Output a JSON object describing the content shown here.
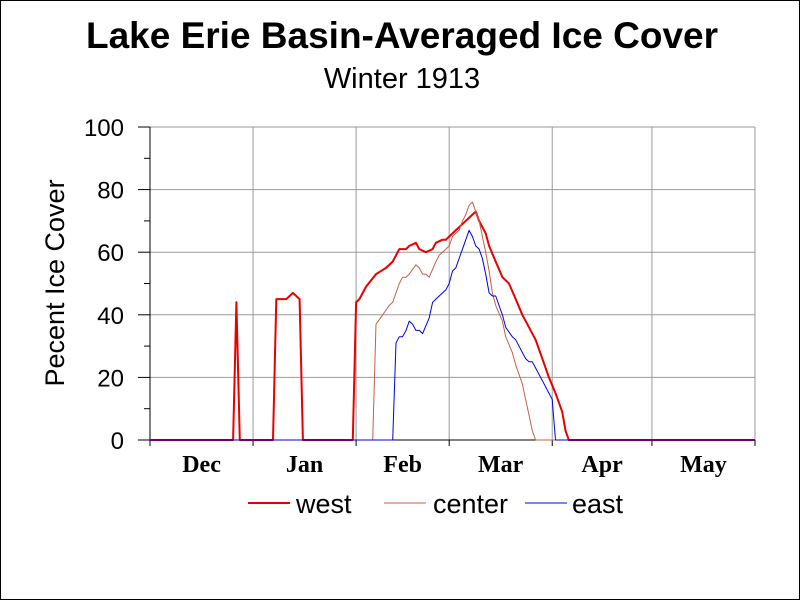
{
  "chart_data": {
    "type": "line",
    "title": "Lake Erie Basin-Averaged Ice Cover",
    "subtitle": "Winter 1913",
    "ylabel": "Pecent Ice Cover",
    "xlabel": "",
    "ylim": [
      0,
      100
    ],
    "yticks": [
      "0",
      "20",
      "40",
      "60",
      "80",
      "100"
    ],
    "x_unit": "days since Dec 1",
    "xlim": [
      0,
      182
    ],
    "months": [
      {
        "label": "Dec",
        "start": 0,
        "end": 31
      },
      {
        "label": "Jan",
        "start": 31,
        "end": 62
      },
      {
        "label": "Feb",
        "start": 62,
        "end": 90
      },
      {
        "label": "Mar",
        "start": 90,
        "end": 121
      },
      {
        "label": "Apr",
        "start": 121,
        "end": 151
      },
      {
        "label": "May",
        "start": 151,
        "end": 182
      }
    ],
    "grid": true,
    "legend_position": "bottom",
    "series": [
      {
        "name": "west",
        "color": "#e80000",
        "width": 2,
        "points": [
          [
            0,
            0
          ],
          [
            25,
            0
          ],
          [
            26,
            44
          ],
          [
            27,
            0
          ],
          [
            28,
            0
          ],
          [
            37,
            0
          ],
          [
            38,
            45
          ],
          [
            41,
            45
          ],
          [
            43,
            47
          ],
          [
            45,
            45
          ],
          [
            46,
            0
          ],
          [
            47,
            0
          ],
          [
            61,
            0
          ],
          [
            62,
            44
          ],
          [
            63,
            45
          ],
          [
            65,
            49
          ],
          [
            68,
            53
          ],
          [
            71,
            55
          ],
          [
            73,
            57
          ],
          [
            75,
            61
          ],
          [
            77,
            61
          ],
          [
            78,
            62
          ],
          [
            80,
            63
          ],
          [
            81,
            61
          ],
          [
            83,
            60
          ],
          [
            85,
            61
          ],
          [
            86,
            63
          ],
          [
            88,
            64
          ],
          [
            89,
            64
          ],
          [
            91,
            66
          ],
          [
            93,
            68
          ],
          [
            95,
            70
          ],
          [
            97,
            72
          ],
          [
            98,
            73
          ],
          [
            99,
            70
          ],
          [
            101,
            66
          ],
          [
            102,
            62
          ],
          [
            104,
            57
          ],
          [
            106,
            52
          ],
          [
            108,
            50
          ],
          [
            110,
            45
          ],
          [
            112,
            40
          ],
          [
            114,
            36
          ],
          [
            116,
            32
          ],
          [
            118,
            26
          ],
          [
            120,
            20
          ],
          [
            122,
            15
          ],
          [
            124,
            9
          ],
          [
            125,
            3
          ],
          [
            126,
            0
          ],
          [
            182,
            0
          ]
        ]
      },
      {
        "name": "center",
        "color": "#c06050",
        "width": 1,
        "points": [
          [
            0,
            0
          ],
          [
            67,
            0
          ],
          [
            68,
            37
          ],
          [
            70,
            40
          ],
          [
            72,
            43
          ],
          [
            73,
            44
          ],
          [
            75,
            50
          ],
          [
            76,
            52
          ],
          [
            77,
            52
          ],
          [
            78,
            53
          ],
          [
            80,
            56
          ],
          [
            81,
            55
          ],
          [
            82,
            53
          ],
          [
            83,
            53
          ],
          [
            84,
            52
          ],
          [
            86,
            57
          ],
          [
            87,
            59
          ],
          [
            88,
            60
          ],
          [
            89,
            61
          ],
          [
            90,
            62
          ],
          [
            91,
            65
          ],
          [
            93,
            67
          ],
          [
            94,
            70
          ],
          [
            95,
            72
          ],
          [
            96,
            75
          ],
          [
            97,
            76
          ],
          [
            98,
            73
          ],
          [
            99,
            70
          ],
          [
            100,
            65
          ],
          [
            101,
            60
          ],
          [
            102,
            54
          ],
          [
            103,
            47
          ],
          [
            104,
            43
          ],
          [
            106,
            38
          ],
          [
            107,
            33
          ],
          [
            109,
            28
          ],
          [
            110,
            24
          ],
          [
            112,
            18
          ],
          [
            113,
            13
          ],
          [
            114,
            8
          ],
          [
            115,
            3
          ],
          [
            116,
            0
          ],
          [
            182,
            0
          ]
        ]
      },
      {
        "name": "east",
        "color": "#0000e0",
        "width": 1,
        "points": [
          [
            0,
            0
          ],
          [
            73,
            0
          ],
          [
            74,
            31
          ],
          [
            75,
            33
          ],
          [
            76,
            33
          ],
          [
            77,
            35
          ],
          [
            78,
            38
          ],
          [
            79,
            37
          ],
          [
            80,
            35
          ],
          [
            81,
            35
          ],
          [
            82,
            34
          ],
          [
            84,
            39
          ],
          [
            85,
            44
          ],
          [
            86,
            45
          ],
          [
            88,
            47
          ],
          [
            89,
            48
          ],
          [
            90,
            50
          ],
          [
            91,
            54
          ],
          [
            92,
            55
          ],
          [
            93,
            58
          ],
          [
            94,
            61
          ],
          [
            95,
            64
          ],
          [
            96,
            67
          ],
          [
            97,
            65
          ],
          [
            98,
            62
          ],
          [
            99,
            61
          ],
          [
            100,
            58
          ],
          [
            101,
            53
          ],
          [
            102,
            47
          ],
          [
            103,
            46
          ],
          [
            104,
            46
          ],
          [
            106,
            40
          ],
          [
            107,
            36
          ],
          [
            109,
            33
          ],
          [
            110,
            32
          ],
          [
            112,
            28
          ],
          [
            113,
            26
          ],
          [
            114,
            25
          ],
          [
            115,
            25
          ],
          [
            116,
            23
          ],
          [
            118,
            19
          ],
          [
            120,
            15
          ],
          [
            121,
            13
          ],
          [
            122,
            0
          ],
          [
            182,
            0
          ]
        ]
      }
    ]
  }
}
